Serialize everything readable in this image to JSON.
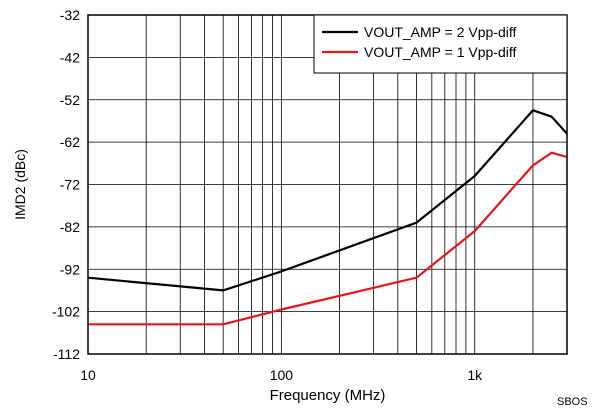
{
  "chart_data": {
    "type": "line",
    "title": "",
    "xlabel": "Frequency (MHz)",
    "ylabel": "IMD2 (dBc)",
    "x_scale": "log",
    "xlim": [
      10,
      3000
    ],
    "ylim": [
      -112,
      -32
    ],
    "x_ticks": [
      {
        "value": 10,
        "label": "10"
      },
      {
        "value": 100,
        "label": "100"
      },
      {
        "value": 1000,
        "label": "1k"
      }
    ],
    "y_ticks": [
      -32,
      -42,
      -52,
      -62,
      -72,
      -82,
      -92,
      -102,
      -112
    ],
    "grid": true,
    "legend_position": "top-right",
    "series": [
      {
        "name": "VOUT_AMP = 2 Vpp-diff",
        "color": "#000000",
        "x": [
          10,
          50,
          100,
          500,
          1000,
          2000,
          2500,
          3000
        ],
        "y": [
          -94,
          -97,
          -92.5,
          -81,
          -70,
          -54.5,
          -56,
          -60
        ]
      },
      {
        "name": "VOUT_AMP = 1 Vpp-diff",
        "color": "#e8141b",
        "x": [
          10,
          50,
          100,
          500,
          1000,
          2000,
          2500,
          3000
        ],
        "y": [
          -105,
          -105,
          -101.5,
          -94,
          -83,
          -67.5,
          -64.5,
          -65.5
        ]
      }
    ]
  },
  "footer": {
    "code": "SBOS"
  }
}
